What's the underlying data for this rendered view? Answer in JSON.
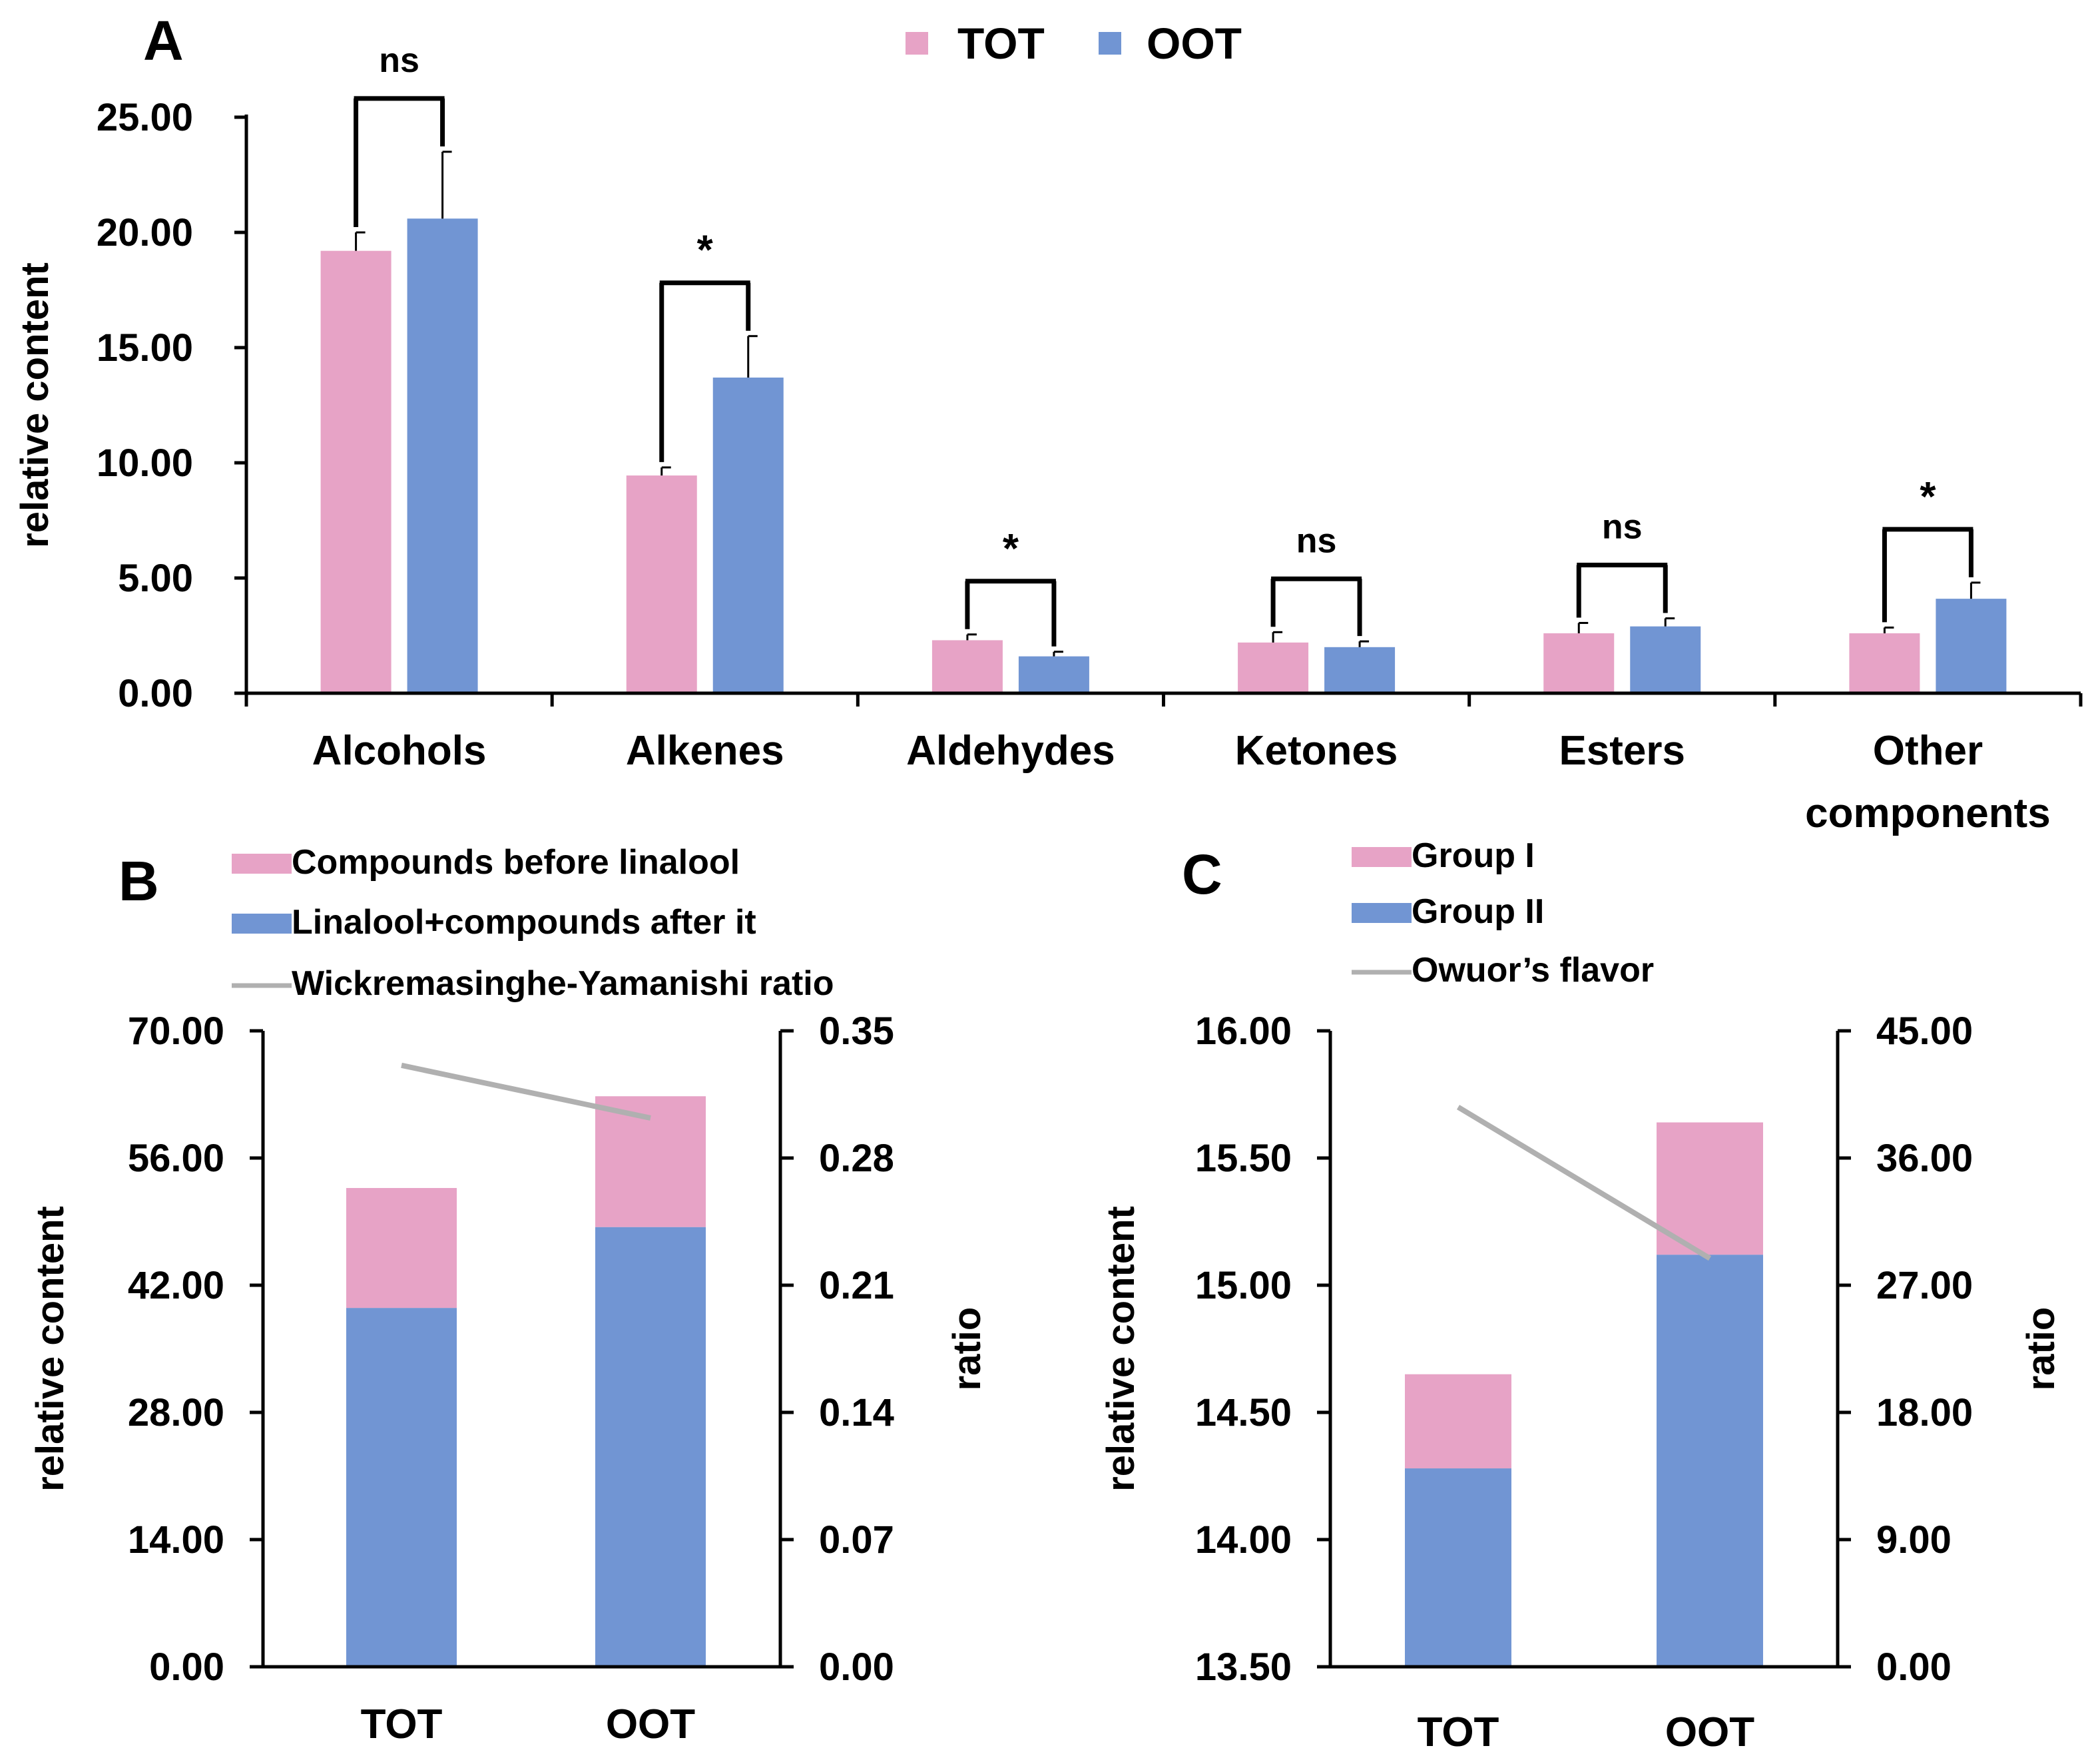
{
  "colors": {
    "tot": "#e7a3c6",
    "oot": "#7195d3",
    "line": "#b0b0b0",
    "axis": "#000000"
  },
  "chart_data": [
    {
      "panel": "A",
      "type": "bar",
      "title": "",
      "xlabel": "",
      "ylabel": "relative content",
      "ylim": [
        0,
        25
      ],
      "yticks": [
        "0.00",
        "5.00",
        "10.00",
        "15.00",
        "20.00",
        "25.00"
      ],
      "categories": [
        "Alcohols",
        "Alkenes",
        "Aldehydes",
        "Ketones",
        "Esters",
        "Other components"
      ],
      "series": [
        {
          "name": "TOT",
          "values": [
            19.2,
            9.45,
            2.3,
            2.2,
            2.6,
            2.6
          ],
          "errors": [
            0.8,
            0.35,
            0.25,
            0.45,
            0.45,
            0.25
          ]
        },
        {
          "name": "OOT",
          "values": [
            20.6,
            13.7,
            1.6,
            2.0,
            2.9,
            4.1
          ],
          "errors": [
            2.9,
            1.8,
            0.2,
            0.25,
            0.35,
            0.7
          ]
        }
      ],
      "significance": [
        "ns",
        "*",
        "*",
        "ns",
        "ns",
        "*"
      ],
      "legend": [
        "TOT",
        "OOT"
      ]
    },
    {
      "panel": "B",
      "type": "bar",
      "stacked": true,
      "title": "",
      "xlabel": "",
      "ylabel": "relative content",
      "y2label": "ratio",
      "ylim": [
        0,
        70
      ],
      "y2lim": [
        0,
        0.35
      ],
      "yticks": [
        "0.00",
        "14.00",
        "28.00",
        "42.00",
        "56.00",
        "70.00"
      ],
      "y2ticks": [
        "0.00",
        "0.07",
        "0.14",
        "0.21",
        "0.28",
        "0.35"
      ],
      "categories": [
        "TOT",
        "OOT"
      ],
      "series": [
        {
          "name": "Linalool+compounds after it",
          "values": [
            39.5,
            48.4
          ]
        },
        {
          "name": "Compounds before linalool",
          "values": [
            13.2,
            14.4
          ]
        }
      ],
      "line": {
        "name": "Wickremasinghe-Yamanishi ratio",
        "values": [
          0.331,
          0.302
        ]
      },
      "legend": [
        "Compounds before linalool",
        "Linalool+compounds after it",
        "Wickremasinghe-Yamanishi ratio"
      ]
    },
    {
      "panel": "C",
      "type": "bar",
      "stacked": true,
      "title": "",
      "xlabel": "",
      "ylabel": "relative content",
      "y2label": "ratio",
      "ylim": [
        13.5,
        16
      ],
      "y2lim": [
        0,
        45
      ],
      "yticks": [
        "13.50",
        "14.00",
        "14.50",
        "15.00",
        "15.50",
        "16.00"
      ],
      "y2ticks": [
        "0.00",
        "9.00",
        "18.00",
        "27.00",
        "36.00",
        "45.00"
      ],
      "categories": [
        "TOT",
        "OOT"
      ],
      "series": [
        {
          "name": "Group II",
          "values": [
            14.28,
            15.12
          ]
        },
        {
          "name": "Group I",
          "values": [
            0.37,
            0.52
          ]
        }
      ],
      "line": {
        "name": "Owuor’s flavor",
        "values": [
          39.6,
          28.9
        ]
      },
      "legend": [
        "Group I",
        "Group II",
        "Owuor’s flavor"
      ]
    }
  ]
}
